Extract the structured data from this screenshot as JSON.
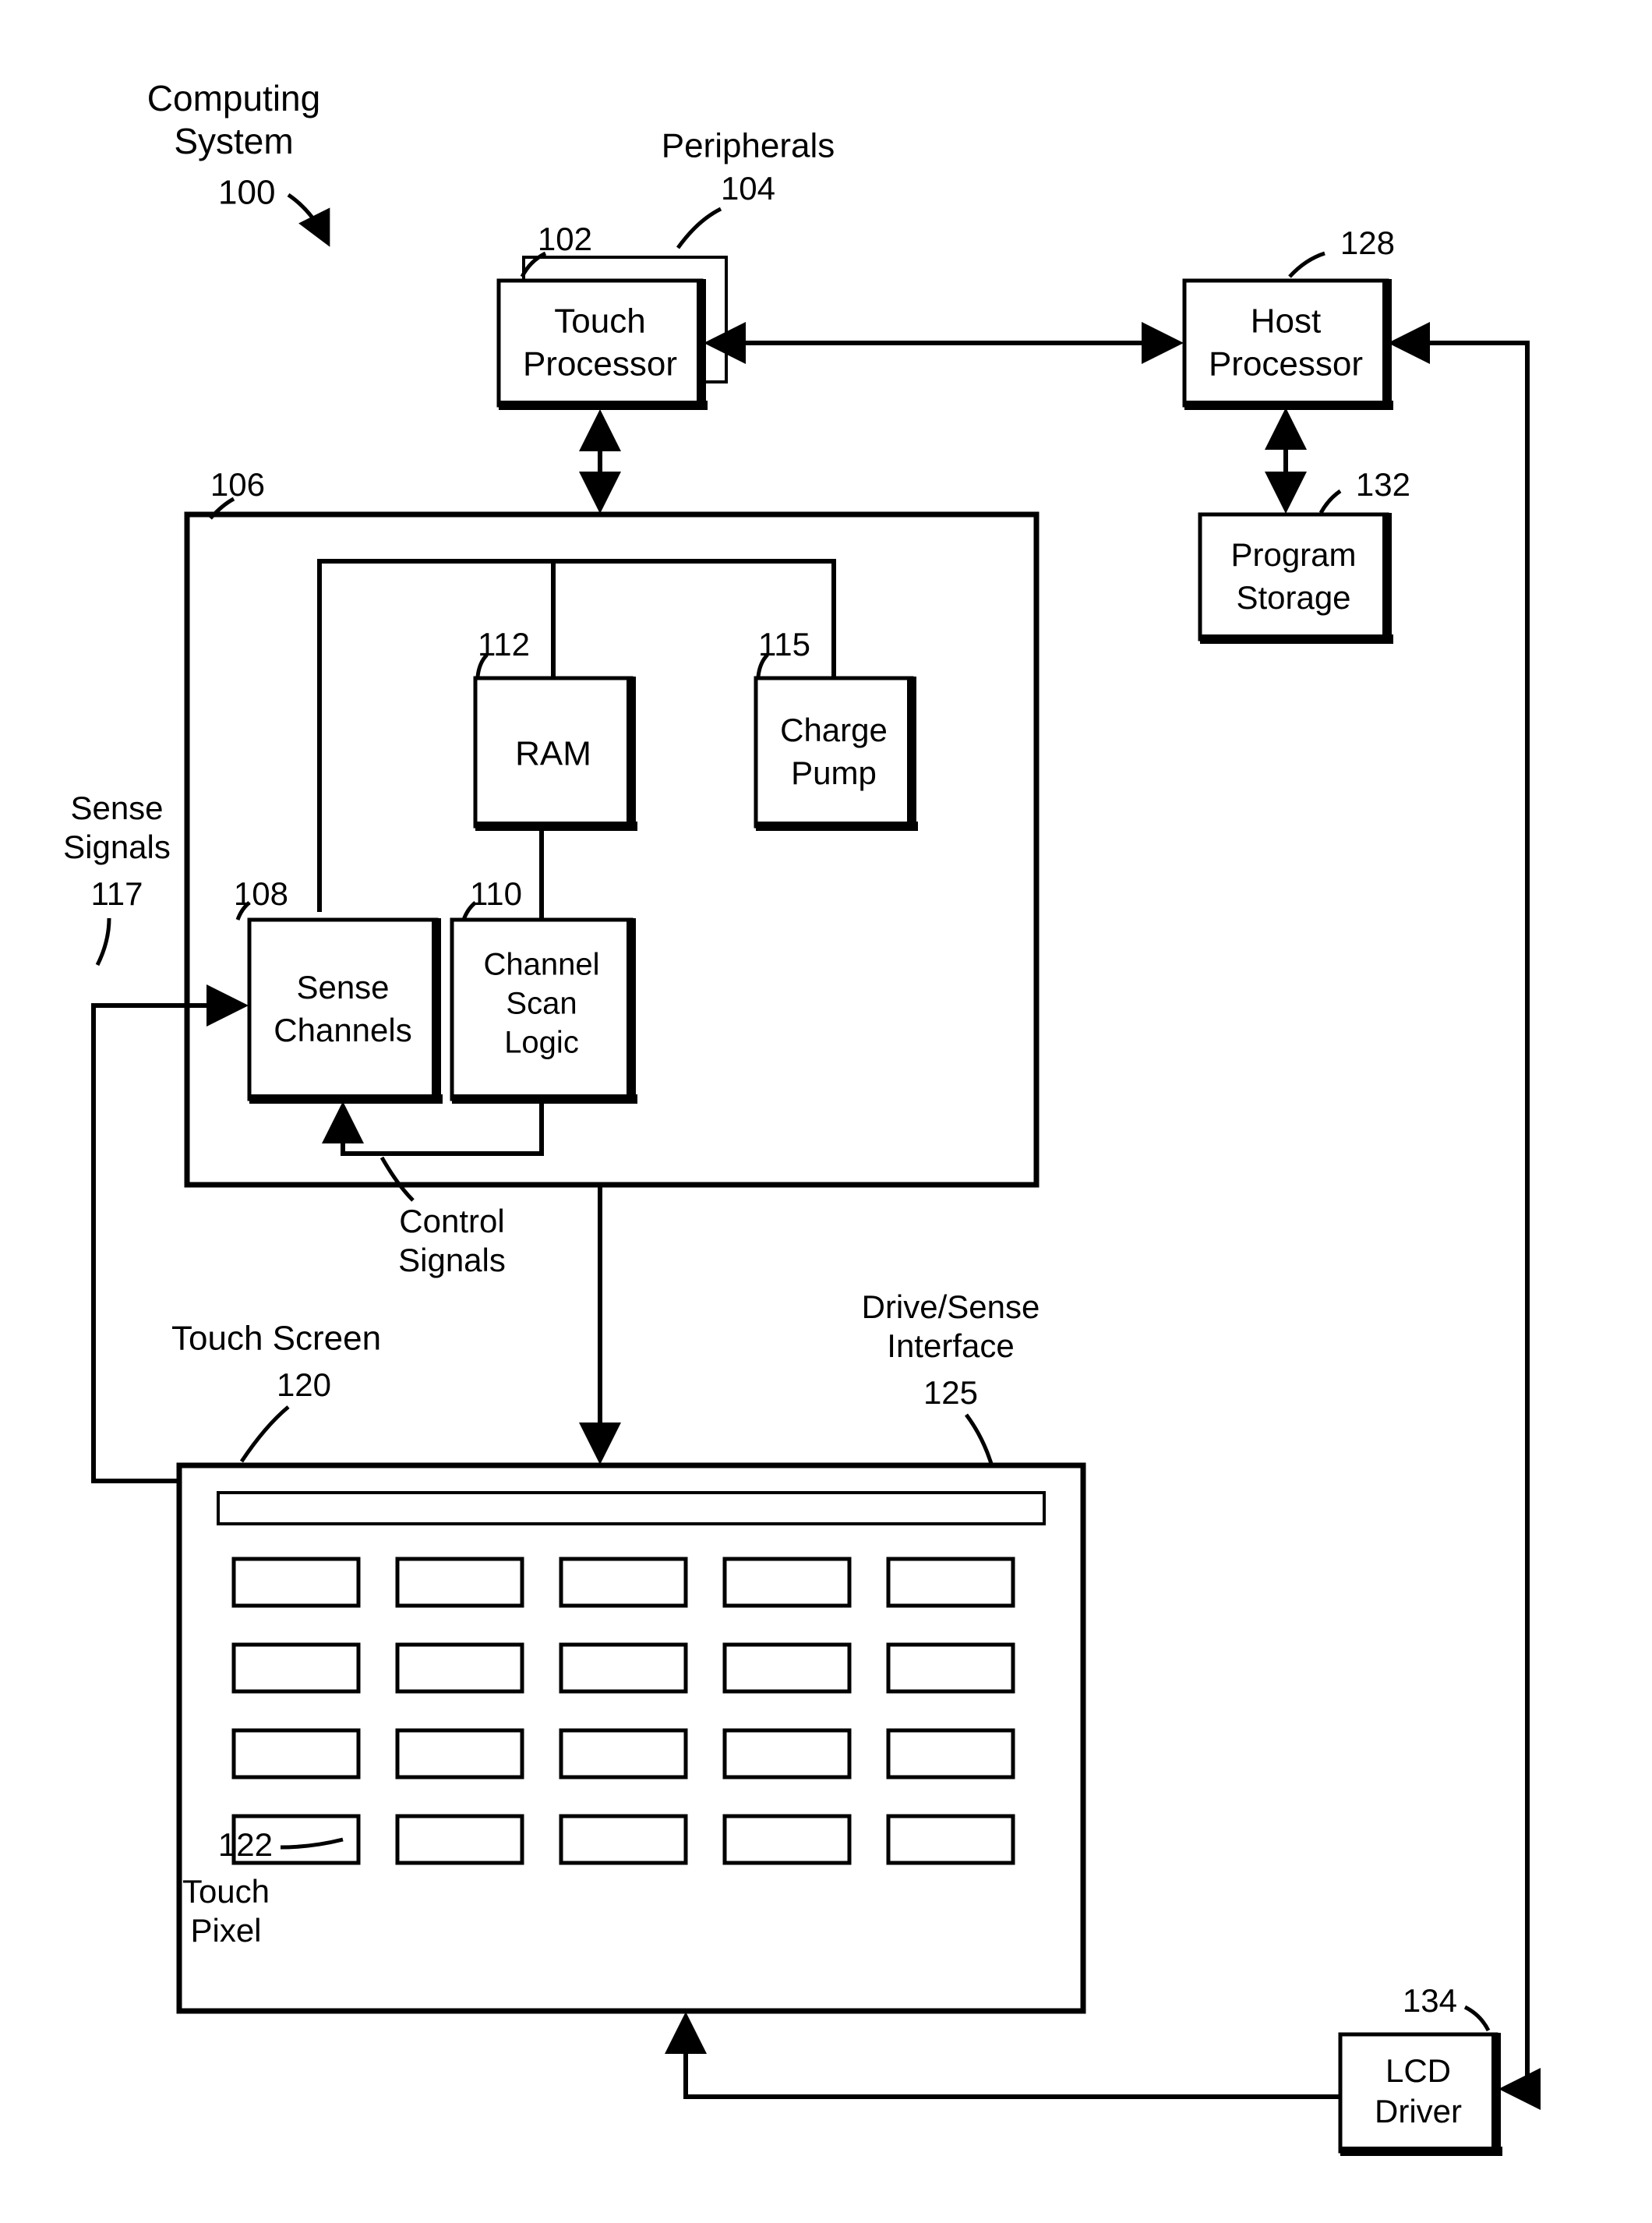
{
  "diagram": {
    "type": "block-diagram",
    "title": {
      "line1": "Computing",
      "line2": "System",
      "ref": "100"
    },
    "font": {
      "label_size": 42,
      "ref_size": 40,
      "family": "Arial"
    },
    "colors": {
      "stroke": "#000000",
      "fill": "#ffffff",
      "background": "#ffffff"
    },
    "stroke_widths": {
      "box_outer": 8,
      "box_inner": 4,
      "line": 5,
      "thin_box": 4
    },
    "nodes": {
      "peripherals": {
        "ref": "104",
        "label": "Peripherals"
      },
      "touch_processor": {
        "ref": "102",
        "line1": "Touch",
        "line2": "Processor"
      },
      "host_processor": {
        "ref": "128",
        "line1": "Host",
        "line2": "Processor"
      },
      "program_storage": {
        "ref": "132",
        "line1": "Program",
        "line2": "Storage"
      },
      "controller": {
        "ref": "106"
      },
      "ram": {
        "ref": "112",
        "label": "RAM"
      },
      "charge_pump": {
        "ref": "115",
        "line1": "Charge",
        "line2": "Pump"
      },
      "sense_channels": {
        "ref": "108",
        "line1": "Sense",
        "line2": "Channels"
      },
      "channel_scan": {
        "ref": "110",
        "line1": "Channel",
        "line2": "Scan",
        "line3": "Logic"
      },
      "control_signals": {
        "line1": "Control",
        "line2": "Signals"
      },
      "sense_signals": {
        "ref": "117",
        "line1": "Sense",
        "line2": "Signals"
      },
      "touch_screen": {
        "ref": "120",
        "label": "Touch Screen"
      },
      "drive_sense_if": {
        "ref": "125",
        "line1": "Drive/Sense",
        "line2": "Interface"
      },
      "touch_pixel": {
        "ref": "122",
        "line1": "Touch",
        "line2": "Pixel"
      },
      "lcd_driver": {
        "ref": "134",
        "line1": "LCD",
        "line2": "Driver"
      }
    },
    "touch_grid": {
      "rows": 4,
      "cols": 5
    }
  }
}
